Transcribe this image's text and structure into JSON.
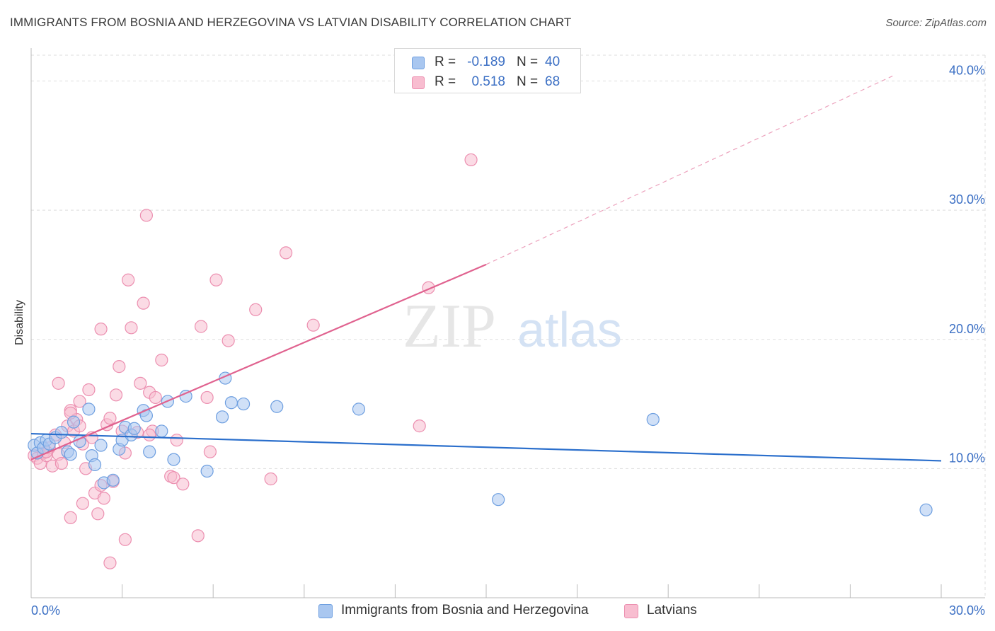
{
  "title": "IMMIGRANTS FROM BOSNIA AND HERZEGOVINA VS LATVIAN DISABILITY CORRELATION CHART",
  "source": "Source: ZipAtlas.com",
  "watermark": {
    "zip": "ZIP",
    "atlas": "atlas"
  },
  "colors": {
    "blue_fill": "#a9c7f0",
    "blue_stroke": "#6e9fe0",
    "blue_line": "#2b6fcc",
    "pink_fill": "#f8bdd0",
    "pink_stroke": "#ec8fb0",
    "pink_line": "#e0628f",
    "axis_text": "#3b6fc4",
    "grid": "#dddddd"
  },
  "legend": {
    "rows": [
      {
        "r_label": "R =",
        "r_value": "-0.189",
        "n_label": "N =",
        "n_value": "40"
      },
      {
        "r_label": "R =",
        "r_value": "0.518",
        "n_label": "N =",
        "n_value": "68"
      }
    ]
  },
  "chart_data": {
    "type": "scatter",
    "title": "IMMIGRANTS FROM BOSNIA AND HERZEGOVINA VS LATVIAN DISABILITY CORRELATION CHART",
    "xlabel": "",
    "ylabel": "Disability",
    "xlim": [
      0,
      30
    ],
    "ylim": [
      0,
      42
    ],
    "x_tick_labels": [
      "0.0%",
      "30.0%"
    ],
    "y_ticks": [
      10,
      20,
      30,
      40
    ],
    "y_tick_labels": [
      "10.0%",
      "20.0%",
      "30.0%",
      "40.0%"
    ],
    "grid": true,
    "legend_position": "top-center",
    "series": [
      {
        "name": "Immigrants from Bosnia and Herzegovina",
        "color": "blue",
        "R": -0.189,
        "N": 40,
        "trend": {
          "x0": 0,
          "y0": 12.7,
          "x1": 30,
          "y1": 10.6
        },
        "points": [
          [
            0.1,
            11.8
          ],
          [
            0.2,
            11.2
          ],
          [
            0.3,
            12.0
          ],
          [
            0.4,
            11.6
          ],
          [
            0.5,
            12.2
          ],
          [
            0.6,
            11.9
          ],
          [
            0.8,
            12.4
          ],
          [
            1.0,
            12.8
          ],
          [
            1.2,
            11.3
          ],
          [
            1.3,
            11.1
          ],
          [
            1.4,
            13.6
          ],
          [
            1.6,
            12.1
          ],
          [
            1.9,
            14.6
          ],
          [
            2.0,
            11.0
          ],
          [
            2.1,
            10.3
          ],
          [
            2.3,
            11.8
          ],
          [
            2.4,
            8.9
          ],
          [
            2.7,
            9.1
          ],
          [
            2.9,
            11.5
          ],
          [
            3.0,
            12.2
          ],
          [
            3.1,
            13.2
          ],
          [
            3.3,
            12.6
          ],
          [
            3.4,
            13.1
          ],
          [
            3.7,
            14.5
          ],
          [
            3.8,
            14.1
          ],
          [
            3.9,
            11.3
          ],
          [
            4.3,
            12.9
          ],
          [
            4.5,
            15.2
          ],
          [
            4.7,
            10.7
          ],
          [
            5.1,
            15.6
          ],
          [
            5.8,
            9.8
          ],
          [
            6.3,
            14.0
          ],
          [
            6.4,
            17.0
          ],
          [
            6.6,
            15.1
          ],
          [
            7.0,
            15.0
          ],
          [
            8.1,
            14.8
          ],
          [
            10.8,
            14.6
          ],
          [
            15.4,
            7.6
          ],
          [
            20.5,
            13.8
          ],
          [
            29.5,
            6.8
          ]
        ]
      },
      {
        "name": "Latvians",
        "color": "pink",
        "R": 0.518,
        "N": 68,
        "trend": {
          "x0": 0,
          "y0": 10.7,
          "x1": 15,
          "y1": 25.8
        },
        "trend_extrapolated": {
          "x0": 15,
          "y0": 25.8,
          "x1": 28.5,
          "y1": 40.5
        },
        "points": [
          [
            0.1,
            11.0
          ],
          [
            0.2,
            10.8
          ],
          [
            0.3,
            10.4
          ],
          [
            0.4,
            11.2
          ],
          [
            0.5,
            11.0
          ],
          [
            0.6,
            11.6
          ],
          [
            0.7,
            10.2
          ],
          [
            0.8,
            12.6
          ],
          [
            0.9,
            11.1
          ],
          [
            1.0,
            10.4
          ],
          [
            1.1,
            12.0
          ],
          [
            1.2,
            13.3
          ],
          [
            1.3,
            14.5
          ],
          [
            1.4,
            12.9
          ],
          [
            1.5,
            13.8
          ],
          [
            1.6,
            15.2
          ],
          [
            1.7,
            11.9
          ],
          [
            1.8,
            10.0
          ],
          [
            1.9,
            16.1
          ],
          [
            2.0,
            12.4
          ],
          [
            2.1,
            8.1
          ],
          [
            2.2,
            6.5
          ],
          [
            2.3,
            8.7
          ],
          [
            2.4,
            7.7
          ],
          [
            2.5,
            13.4
          ],
          [
            2.6,
            13.9
          ],
          [
            2.7,
            9.0
          ],
          [
            2.8,
            15.7
          ],
          [
            2.9,
            17.9
          ],
          [
            3.0,
            12.9
          ],
          [
            3.1,
            11.2
          ],
          [
            3.2,
            24.6
          ],
          [
            3.3,
            20.9
          ],
          [
            3.5,
            12.8
          ],
          [
            3.6,
            16.6
          ],
          [
            3.7,
            22.8
          ],
          [
            3.8,
            29.6
          ],
          [
            3.9,
            15.9
          ],
          [
            4.0,
            12.9
          ],
          [
            4.1,
            15.5
          ],
          [
            4.3,
            18.4
          ],
          [
            4.6,
            9.4
          ],
          [
            4.7,
            9.3
          ],
          [
            4.8,
            12.2
          ],
          [
            5.0,
            8.8
          ],
          [
            5.5,
            4.8
          ],
          [
            5.6,
            21.0
          ],
          [
            5.8,
            15.5
          ],
          [
            5.9,
            11.3
          ],
          [
            6.1,
            24.6
          ],
          [
            6.5,
            19.9
          ],
          [
            7.4,
            22.3
          ],
          [
            7.9,
            9.2
          ],
          [
            8.4,
            26.7
          ],
          [
            9.3,
            21.1
          ],
          [
            12.8,
            13.3
          ],
          [
            13.1,
            24.0
          ],
          [
            14.5,
            33.9
          ],
          [
            0.9,
            16.6
          ],
          [
            1.3,
            14.3
          ],
          [
            1.7,
            7.3
          ],
          [
            1.3,
            6.2
          ],
          [
            3.1,
            4.5
          ],
          [
            2.6,
            2.7
          ],
          [
            2.3,
            20.8
          ],
          [
            3.9,
            12.6
          ],
          [
            1.6,
            13.3
          ],
          [
            0.5,
            11.3
          ]
        ]
      }
    ]
  }
}
